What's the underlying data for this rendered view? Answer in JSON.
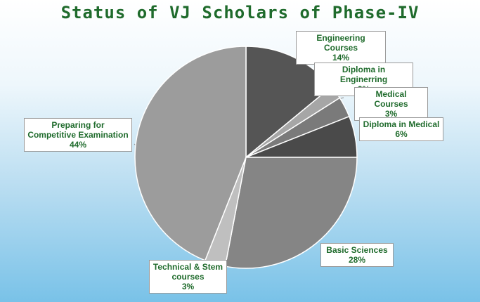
{
  "chart_data": {
    "type": "pie",
    "title": "Status of VJ Scholars of Phase-IV",
    "slices": [
      {
        "label": "Engineering Courses",
        "value": 14,
        "value_label": "14%",
        "color": "#555555"
      },
      {
        "label": "Diploma in Enginerring",
        "value": 2,
        "value_label": "2%",
        "color": "#a6a6a6"
      },
      {
        "label": "Medical Courses",
        "value": 3,
        "value_label": "3%",
        "color": "#7a7a7a"
      },
      {
        "label": "Diploma in Medical",
        "value": 6,
        "value_label": "6%",
        "color": "#4a4a4a"
      },
      {
        "label": "Basic Sciences",
        "value": 28,
        "value_label": "28%",
        "color": "#858585"
      },
      {
        "label": "Technical & Stem courses",
        "value": 3,
        "value_label": "3%",
        "color": "#bfbfbf"
      },
      {
        "label": "Preparing for Competitive Examination",
        "value": 44,
        "value_label": "44%",
        "color": "#9c9c9c"
      }
    ]
  }
}
